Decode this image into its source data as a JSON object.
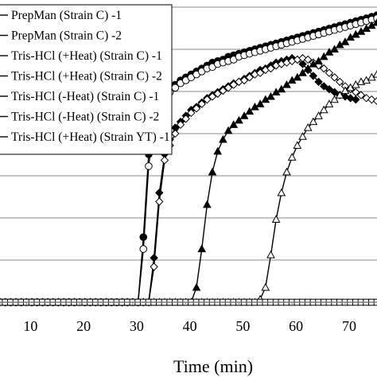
{
  "chart_data": {
    "type": "line",
    "title": "",
    "xlabel": "Time (min)",
    "ylabel": "",
    "xlim": [
      5,
      76
    ],
    "ylim": [
      0,
      1
    ],
    "x_ticks": [
      10,
      20,
      30,
      40,
      50,
      60,
      70
    ],
    "x_tick_labels": [
      "10",
      "20",
      "30",
      "40",
      "50",
      "60",
      "70"
    ],
    "grid": "horizontal",
    "legend_position": "top-left",
    "legend_labels": [
      "PrepMan (Strain C) -1",
      "PrepMan (Strain C) -2",
      "Tris-HCl (+Heat) (Strain C) -1",
      "Tris-HCl (+Heat) (Strain C) -2",
      "Tris-HCl (-Heat) (Strain C) -1",
      "Tris-HCl (-Heat) (Strain C) -2",
      "Tris-HCl (+Heat) (Strain YT) -1"
    ],
    "series": [
      {
        "marker": "filled-circle",
        "x": [
          5,
          6,
          7,
          8,
          9,
          10,
          11,
          12,
          13,
          14,
          15,
          16,
          17,
          18,
          19,
          20,
          21,
          22,
          23,
          24,
          25,
          26,
          27,
          28,
          29,
          30,
          31,
          32,
          33,
          34,
          35,
          36,
          37,
          38,
          39,
          40,
          41,
          42,
          43,
          44,
          45,
          46,
          47,
          48,
          49,
          50,
          51,
          52,
          53,
          54,
          55,
          56,
          57,
          58,
          59,
          60,
          61,
          62,
          63,
          64,
          65,
          66,
          67,
          68,
          69,
          70,
          71,
          72,
          73,
          74,
          75,
          76
        ],
        "y": [
          0,
          0,
          0,
          0,
          0,
          0,
          0,
          0,
          0,
          0,
          0,
          0,
          0,
          0,
          0,
          0,
          0,
          0,
          0,
          0,
          0,
          0,
          0,
          0,
          0,
          0,
          0,
          0.22,
          0.5,
          0.62,
          0.67,
          0.7,
          0.72,
          0.735,
          0.75,
          0.76,
          0.77,
          0.78,
          0.79,
          0.8,
          0.81,
          0.815,
          0.82,
          0.83,
          0.835,
          0.84,
          0.845,
          0.85,
          0.855,
          0.86,
          0.865,
          0.87,
          0.875,
          0.88,
          0.885,
          0.89,
          0.895,
          0.9,
          0.905,
          0.91,
          0.915,
          0.92,
          0.925,
          0.93,
          0.935,
          0.94,
          0.945,
          0.95,
          0.955,
          0.96,
          0.965,
          0.97
        ]
      },
      {
        "marker": "open-circle",
        "x": [
          5,
          6,
          7,
          8,
          9,
          10,
          11,
          12,
          13,
          14,
          15,
          16,
          17,
          18,
          19,
          20,
          21,
          22,
          23,
          24,
          25,
          26,
          27,
          28,
          29,
          30,
          31,
          32,
          33,
          34,
          35,
          36,
          37,
          38,
          39,
          40,
          41,
          42,
          43,
          44,
          45,
          46,
          47,
          48,
          49,
          50,
          51,
          52,
          53,
          54,
          55,
          56,
          57,
          58,
          59,
          60,
          61,
          62,
          63,
          64,
          65,
          66,
          67,
          68,
          69,
          70,
          71,
          72,
          73,
          74,
          75,
          76
        ],
        "y": [
          0,
          0,
          0,
          0,
          0,
          0,
          0,
          0,
          0,
          0,
          0,
          0,
          0,
          0,
          0,
          0,
          0,
          0,
          0,
          0,
          0,
          0,
          0,
          0,
          0,
          0,
          0,
          0.18,
          0.46,
          0.6,
          0.655,
          0.69,
          0.71,
          0.725,
          0.74,
          0.75,
          0.76,
          0.77,
          0.78,
          0.79,
          0.795,
          0.805,
          0.81,
          0.815,
          0.82,
          0.83,
          0.835,
          0.84,
          0.845,
          0.85,
          0.855,
          0.86,
          0.865,
          0.87,
          0.875,
          0.88,
          0.885,
          0.89,
          0.895,
          0.9,
          0.905,
          0.91,
          0.915,
          0.92,
          0.925,
          0.93,
          0.935,
          0.94,
          0.945,
          0.95,
          0.955,
          0.96
        ]
      },
      {
        "marker": "filled-diamond",
        "x": [
          5,
          6,
          7,
          8,
          9,
          10,
          11,
          12,
          13,
          14,
          15,
          16,
          17,
          18,
          19,
          20,
          21,
          22,
          23,
          24,
          25,
          26,
          27,
          28,
          29,
          30,
          31,
          32,
          33,
          34,
          35,
          36,
          37,
          38,
          39,
          40,
          41,
          42,
          43,
          44,
          45,
          46,
          47,
          48,
          49,
          50,
          51,
          52,
          53,
          54,
          55,
          56,
          57,
          58,
          59,
          60,
          61,
          62,
          63,
          64,
          65,
          66,
          67,
          68,
          69,
          70,
          71,
          72
        ],
        "y": [
          0,
          0,
          0,
          0,
          0,
          0,
          0,
          0,
          0,
          0,
          0,
          0,
          0,
          0,
          0,
          0,
          0,
          0,
          0,
          0,
          0,
          0,
          0,
          0,
          0,
          0,
          0,
          0,
          0,
          0.15,
          0.37,
          0.5,
          0.55,
          0.59,
          0.61,
          0.63,
          0.65,
          0.66,
          0.675,
          0.69,
          0.7,
          0.71,
          0.72,
          0.73,
          0.74,
          0.745,
          0.755,
          0.765,
          0.775,
          0.785,
          0.79,
          0.8,
          0.81,
          0.815,
          0.82,
          0.825,
          0.82,
          0.805,
          0.785,
          0.765,
          0.745,
          0.73,
          0.72,
          0.71,
          0.7,
          0.695,
          0.69,
          0.685
        ]
      },
      {
        "marker": "open-diamond",
        "x": [
          5,
          6,
          7,
          8,
          9,
          10,
          11,
          12,
          13,
          14,
          15,
          16,
          17,
          18,
          19,
          20,
          21,
          22,
          23,
          24,
          25,
          26,
          27,
          28,
          29,
          30,
          31,
          32,
          33,
          34,
          35,
          36,
          37,
          38,
          39,
          40,
          41,
          42,
          43,
          44,
          45,
          46,
          47,
          48,
          49,
          50,
          51,
          52,
          53,
          54,
          55,
          56,
          57,
          58,
          59,
          60,
          61,
          62,
          63,
          64,
          65,
          66,
          67,
          68,
          69,
          70,
          71,
          72,
          73,
          74,
          75,
          76
        ],
        "y": [
          0,
          0,
          0,
          0,
          0,
          0,
          0,
          0,
          0,
          0,
          0,
          0,
          0,
          0,
          0,
          0,
          0,
          0,
          0,
          0,
          0,
          0,
          0,
          0,
          0,
          0,
          0,
          0,
          0,
          0.12,
          0.34,
          0.48,
          0.53,
          0.57,
          0.6,
          0.62,
          0.64,
          0.655,
          0.67,
          0.685,
          0.695,
          0.705,
          0.715,
          0.725,
          0.735,
          0.745,
          0.75,
          0.76,
          0.77,
          0.775,
          0.785,
          0.79,
          0.8,
          0.805,
          0.81,
          0.815,
          0.82,
          0.825,
          0.82,
          0.81,
          0.8,
          0.79,
          0.775,
          0.76,
          0.745,
          0.73,
          0.72,
          0.71,
          0.7,
          0.69,
          0.685,
          0.68
        ]
      },
      {
        "marker": "filled-triangle",
        "x": [
          5,
          6,
          7,
          8,
          9,
          10,
          11,
          12,
          13,
          14,
          15,
          16,
          17,
          18,
          19,
          20,
          21,
          22,
          23,
          24,
          25,
          26,
          27,
          28,
          29,
          30,
          31,
          32,
          33,
          34,
          35,
          36,
          37,
          38,
          39,
          40,
          41,
          42,
          43,
          44,
          45,
          46,
          47,
          48,
          49,
          50,
          51,
          52,
          53,
          54,
          55,
          56,
          57,
          58,
          59,
          60,
          61,
          62,
          63,
          64,
          65,
          66,
          67,
          68,
          69,
          70,
          71,
          72,
          73,
          74,
          75,
          76
        ],
        "y": [
          0,
          0,
          0,
          0,
          0,
          0,
          0,
          0,
          0,
          0,
          0,
          0,
          0,
          0,
          0,
          0,
          0,
          0,
          0,
          0,
          0,
          0,
          0,
          0,
          0,
          0,
          0,
          0,
          0,
          0,
          0,
          0,
          0,
          0,
          0,
          0,
          0,
          0.05,
          0.18,
          0.33,
          0.44,
          0.51,
          0.55,
          0.58,
          0.6,
          0.615,
          0.63,
          0.645,
          0.66,
          0.67,
          0.685,
          0.695,
          0.71,
          0.72,
          0.735,
          0.75,
          0.76,
          0.775,
          0.79,
          0.805,
          0.815,
          0.83,
          0.845,
          0.855,
          0.87,
          0.88,
          0.895,
          0.905,
          0.915,
          0.925,
          0.935,
          0.945
        ]
      },
      {
        "marker": "open-triangle",
        "x": [
          5,
          6,
          7,
          8,
          9,
          10,
          11,
          12,
          13,
          14,
          15,
          16,
          17,
          18,
          19,
          20,
          21,
          22,
          23,
          24,
          25,
          26,
          27,
          28,
          29,
          30,
          31,
          32,
          33,
          34,
          35,
          36,
          37,
          38,
          39,
          40,
          41,
          42,
          43,
          44,
          45,
          46,
          47,
          48,
          49,
          50,
          51,
          52,
          53,
          54,
          55,
          56,
          57,
          58,
          59,
          60,
          61,
          62,
          63,
          64,
          65,
          66,
          67,
          68,
          69,
          70,
          71,
          72,
          73,
          74,
          75,
          76
        ],
        "y": [
          0,
          0,
          0,
          0,
          0,
          0,
          0,
          0,
          0,
          0,
          0,
          0,
          0,
          0,
          0,
          0,
          0,
          0,
          0,
          0,
          0,
          0,
          0,
          0,
          0,
          0,
          0,
          0,
          0,
          0,
          0,
          0,
          0,
          0,
          0,
          0,
          0,
          0,
          0,
          0,
          0,
          0,
          0,
          0,
          0,
          0,
          0,
          0,
          0,
          0.01,
          0.05,
          0.16,
          0.28,
          0.37,
          0.44,
          0.49,
          0.53,
          0.56,
          0.59,
          0.61,
          0.63,
          0.65,
          0.67,
          0.685,
          0.7,
          0.715,
          0.725,
          0.735,
          0.745,
          0.75,
          0.76,
          0.77
        ]
      },
      {
        "marker": "open-square",
        "x": [
          5,
          6,
          7,
          8,
          9,
          10,
          11,
          12,
          13,
          14,
          15,
          16,
          17,
          18,
          19,
          20,
          21,
          22,
          23,
          24,
          25,
          26,
          27,
          28,
          29,
          30,
          31,
          32,
          33,
          34,
          35,
          36,
          37,
          38,
          39,
          40,
          41,
          42,
          43,
          44,
          45,
          46,
          47,
          48,
          49,
          50,
          51,
          52,
          53,
          54,
          55,
          56,
          57,
          58,
          59,
          60,
          61,
          62,
          63,
          64,
          65,
          66,
          67,
          68,
          69,
          70,
          71,
          72,
          73,
          74,
          75,
          76
        ],
        "y": [
          0,
          0,
          0,
          0,
          0,
          0,
          0,
          0,
          0,
          0,
          0,
          0,
          0,
          0,
          0,
          0,
          0,
          0,
          0,
          0,
          0,
          0,
          0,
          0,
          0,
          0,
          0,
          0,
          0,
          0,
          0,
          0,
          0,
          0,
          0,
          0,
          0,
          0,
          0,
          0,
          0,
          0,
          0,
          0,
          0,
          0,
          0,
          0,
          0,
          0,
          0,
          0,
          0,
          0,
          0,
          0,
          0,
          0,
          0,
          0,
          0,
          0,
          0,
          0,
          0,
          0,
          0,
          0,
          0,
          0,
          0,
          0
        ]
      }
    ]
  }
}
